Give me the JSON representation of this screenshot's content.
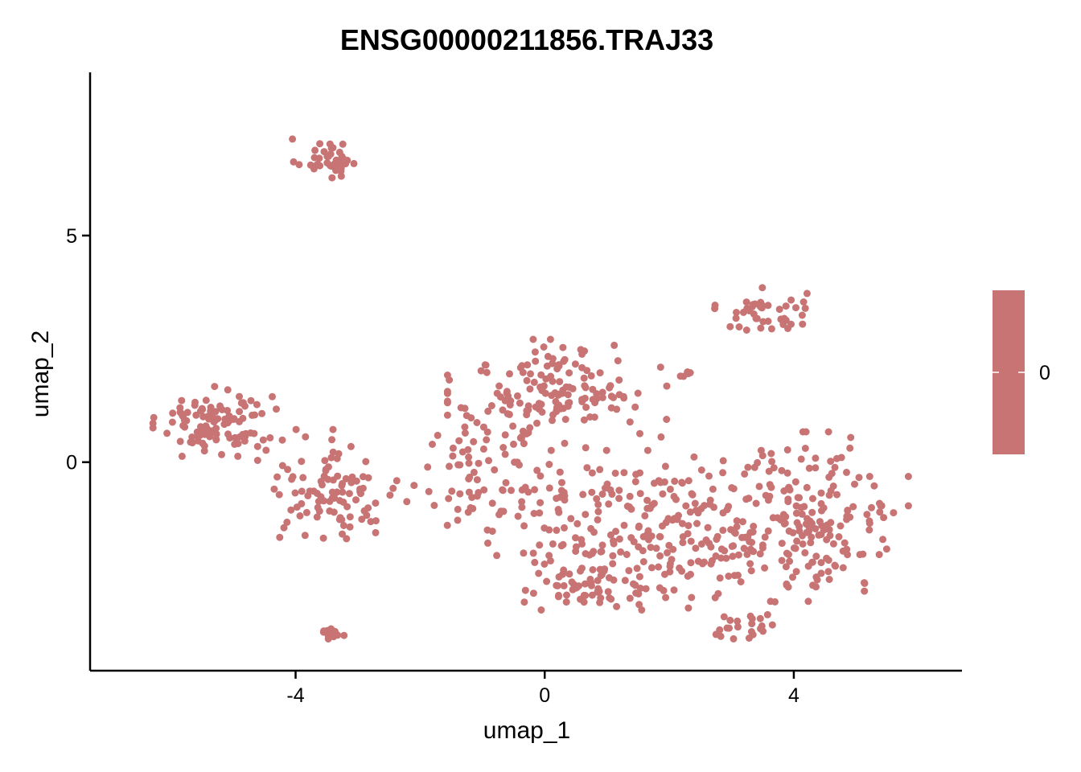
{
  "chart_data": {
    "type": "scatter",
    "title": "ENSG00000211856.TRAJ33",
    "xlabel": "umap_1",
    "ylabel": "umap_2",
    "xlim": [
      -7.3,
      6.7
    ],
    "ylim": [
      -4.6,
      8.6
    ],
    "x_ticks": [
      -4,
      0,
      4
    ],
    "x_tick_labels": [
      "-4",
      "0",
      "4"
    ],
    "y_ticks": [
      0,
      5
    ],
    "y_tick_labels": [
      "0",
      "5"
    ],
    "point_color": "#c87474",
    "grid": false,
    "legend": {
      "position": "right",
      "type": "colorbar",
      "labels": [
        "0"
      ],
      "color": "#c87474"
    },
    "clusters": [
      {
        "center": [
          -3.5,
          6.7
        ],
        "spread": [
          0.25,
          0.22
        ],
        "count": 40
      },
      {
        "center": [
          3.5,
          3.3
        ],
        "spread": [
          0.35,
          0.25
        ],
        "count": 45
      },
      {
        "center": [
          -5.3,
          0.9
        ],
        "spread": [
          0.45,
          0.35
        ],
        "count": 110
      },
      {
        "center": [
          -3.4,
          -3.75
        ],
        "spread": [
          0.1,
          0.07
        ],
        "count": 16
      },
      {
        "center": [
          2.25,
          1.9
        ],
        "spread": [
          0.06,
          0.06
        ],
        "count": 5
      },
      {
        "center": [
          0.2,
          1.5
        ],
        "spread": [
          0.8,
          0.55
        ],
        "count": 150
      },
      {
        "center": [
          -3.4,
          -0.6
        ],
        "spread": [
          0.55,
          0.6
        ],
        "count": 100
      },
      {
        "center": [
          1.8,
          -1.5
        ],
        "spread": [
          1.2,
          0.8
        ],
        "count": 260
      },
      {
        "center": [
          4.3,
          -1.2
        ],
        "spread": [
          0.7,
          0.85
        ],
        "count": 170
      },
      {
        "center": [
          3.3,
          -3.6
        ],
        "spread": [
          0.25,
          0.15
        ],
        "count": 22
      },
      {
        "center": [
          0.7,
          -2.8
        ],
        "spread": [
          0.55,
          0.25
        ],
        "count": 45
      },
      {
        "center": [
          -1.0,
          -0.3
        ],
        "spread": [
          0.6,
          0.8
        ],
        "count": 80
      }
    ]
  }
}
